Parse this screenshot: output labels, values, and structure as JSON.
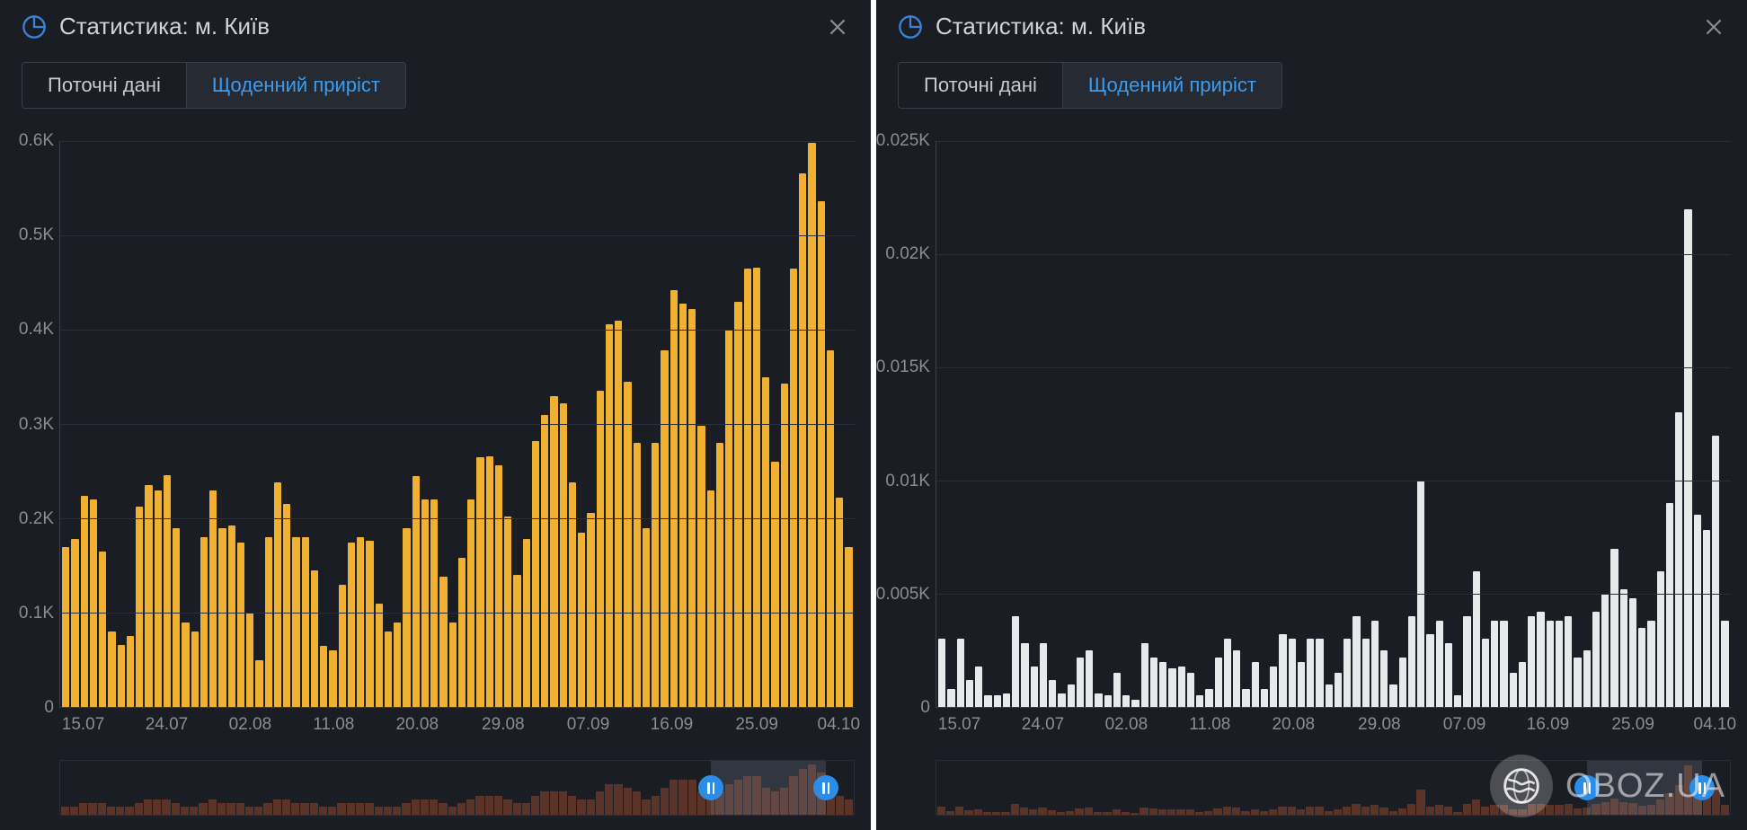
{
  "panels": [
    {
      "title": "Статистика: м. Київ",
      "tabs": [
        {
          "label": "Поточні дані",
          "active": false
        },
        {
          "label": "Щоденний приріст",
          "active": true
        }
      ],
      "chart": {
        "type": "bar",
        "bar_color": "#f0b132",
        "background_color": "#1a1d24",
        "grid_color": "#2a2e36",
        "border_color": "#3a3e46",
        "ylim": [
          0,
          0.6
        ],
        "y_ticks": [
          0,
          0.1,
          0.2,
          0.3,
          0.4,
          0.5,
          0.6
        ],
        "y_tick_labels": [
          "0",
          "0.1K",
          "0.2K",
          "0.3K",
          "0.4K",
          "0.5K",
          "0.6K"
        ],
        "x_tick_labels": [
          "15.07",
          "24.07",
          "02.08",
          "11.08",
          "20.08",
          "29.08",
          "07.09",
          "16.09",
          "25.09",
          "04.10"
        ],
        "x_tick_positions_pct": [
          3,
          13.5,
          24,
          34.5,
          45,
          55.8,
          66.5,
          77,
          87.7,
          98
        ],
        "label_fontsize": 19,
        "label_color": "#8a8d94",
        "values": [
          0.17,
          0.178,
          0.224,
          0.22,
          0.165,
          0.08,
          0.066,
          0.075,
          0.212,
          0.235,
          0.23,
          0.246,
          0.19,
          0.09,
          0.08,
          0.18,
          0.23,
          0.19,
          0.192,
          0.174,
          0.1,
          0.05,
          0.18,
          0.238,
          0.215,
          0.18,
          0.18,
          0.145,
          0.065,
          0.06,
          0.13,
          0.174,
          0.18,
          0.176,
          0.11,
          0.08,
          0.09,
          0.19,
          0.245,
          0.22,
          0.22,
          0.138,
          0.09,
          0.158,
          0.22,
          0.265,
          0.266,
          0.256,
          0.202,
          0.14,
          0.178,
          0.282,
          0.31,
          0.33,
          0.322,
          0.238,
          0.185,
          0.206,
          0.335,
          0.406,
          0.41,
          0.345,
          0.28,
          0.19,
          0.28,
          0.378,
          0.442,
          0.428,
          0.422,
          0.298,
          0.23,
          0.28,
          0.4,
          0.43,
          0.465,
          0.466,
          0.35,
          0.26,
          0.343,
          0.465,
          0.566,
          0.598,
          0.536,
          0.378,
          0.222,
          0.17
        ]
      },
      "timeline": {
        "bar_color": "#5a3428",
        "handle_color": "#2b8de8",
        "window_pct": [
          82,
          96.5
        ],
        "values": [
          0.02,
          0.02,
          0.03,
          0.03,
          0.03,
          0.02,
          0.02,
          0.02,
          0.03,
          0.04,
          0.04,
          0.04,
          0.03,
          0.02,
          0.02,
          0.03,
          0.04,
          0.03,
          0.03,
          0.03,
          0.02,
          0.02,
          0.03,
          0.04,
          0.04,
          0.03,
          0.03,
          0.03,
          0.02,
          0.02,
          0.03,
          0.03,
          0.03,
          0.03,
          0.02,
          0.02,
          0.02,
          0.03,
          0.04,
          0.04,
          0.04,
          0.03,
          0.02,
          0.03,
          0.04,
          0.05,
          0.05,
          0.05,
          0.04,
          0.03,
          0.03,
          0.05,
          0.06,
          0.06,
          0.06,
          0.05,
          0.04,
          0.04,
          0.06,
          0.08,
          0.08,
          0.07,
          0.06,
          0.04,
          0.05,
          0.07,
          0.09,
          0.09,
          0.09,
          0.06,
          0.05,
          0.06,
          0.08,
          0.09,
          0.1,
          0.1,
          0.07,
          0.06,
          0.07,
          0.1,
          0.12,
          0.13,
          0.11,
          0.08,
          0.05,
          0.04
        ],
        "tl_max": 0.14
      }
    },
    {
      "title": "Статистика: м. Київ",
      "tabs": [
        {
          "label": "Поточні дані",
          "active": false
        },
        {
          "label": "Щоденний приріст",
          "active": true
        }
      ],
      "chart": {
        "type": "bar",
        "bar_color": "#e8e9ea",
        "background_color": "#1a1d24",
        "grid_color": "#2a2e36",
        "border_color": "#3a3e46",
        "ylim": [
          0,
          0.025
        ],
        "y_ticks": [
          0,
          0.005,
          0.01,
          0.015,
          0.02,
          0.025
        ],
        "y_tick_labels": [
          "0",
          "0.005K",
          "0.01K",
          "0.015K",
          "0.02K",
          "0.025K"
        ],
        "x_tick_labels": [
          "15.07",
          "24.07",
          "02.08",
          "11.08",
          "20.08",
          "29.08",
          "07.09",
          "16.09",
          "25.09",
          "04.10"
        ],
        "x_tick_positions_pct": [
          3,
          13.5,
          24,
          34.5,
          45,
          55.8,
          66.5,
          77,
          87.7,
          98
        ],
        "label_fontsize": 19,
        "label_color": "#8a8d94",
        "values": [
          0.003,
          0.0008,
          0.003,
          0.0012,
          0.0018,
          0.0005,
          0.0005,
          0.0006,
          0.004,
          0.0028,
          0.0018,
          0.0028,
          0.0012,
          0.0006,
          0.001,
          0.0022,
          0.0025,
          0.0006,
          0.0005,
          0.0015,
          0.0005,
          0.0003,
          0.0028,
          0.0022,
          0.002,
          0.0017,
          0.0018,
          0.0015,
          0.0005,
          0.0008,
          0.0022,
          0.003,
          0.0025,
          0.0008,
          0.002,
          0.0008,
          0.0018,
          0.0032,
          0.003,
          0.002,
          0.003,
          0.003,
          0.001,
          0.0015,
          0.003,
          0.004,
          0.003,
          0.0038,
          0.0025,
          0.001,
          0.0022,
          0.004,
          0.01,
          0.0032,
          0.0038,
          0.0028,
          0.0005,
          0.004,
          0.006,
          0.003,
          0.0038,
          0.0038,
          0.0015,
          0.002,
          0.004,
          0.0042,
          0.0038,
          0.0038,
          0.004,
          0.0022,
          0.0025,
          0.0042,
          0.005,
          0.007,
          0.0052,
          0.0048,
          0.0035,
          0.0038,
          0.006,
          0.009,
          0.013,
          0.022,
          0.0085,
          0.0078,
          0.012,
          0.0038
        ]
      },
      "timeline": {
        "bar_color": "#5a3428",
        "handle_color": "#2b8de8",
        "window_pct": [
          82,
          96.5
        ],
        "values": [
          0.01,
          0.004,
          0.01,
          0.005,
          0.006,
          0.003,
          0.003,
          0.003,
          0.013,
          0.009,
          0.007,
          0.009,
          0.005,
          0.003,
          0.004,
          0.008,
          0.009,
          0.003,
          0.003,
          0.006,
          0.003,
          0.002,
          0.009,
          0.008,
          0.007,
          0.006,
          0.007,
          0.006,
          0.003,
          0.004,
          0.008,
          0.01,
          0.009,
          0.004,
          0.007,
          0.004,
          0.007,
          0.01,
          0.01,
          0.007,
          0.01,
          0.01,
          0.004,
          0.006,
          0.01,
          0.013,
          0.01,
          0.012,
          0.009,
          0.004,
          0.008,
          0.013,
          0.03,
          0.01,
          0.012,
          0.01,
          0.003,
          0.013,
          0.018,
          0.01,
          0.012,
          0.012,
          0.006,
          0.007,
          0.013,
          0.013,
          0.012,
          0.012,
          0.013,
          0.008,
          0.009,
          0.013,
          0.015,
          0.02,
          0.015,
          0.014,
          0.011,
          0.012,
          0.018,
          0.026,
          0.036,
          0.06,
          0.024,
          0.022,
          0.034,
          0.012
        ],
        "tl_max": 0.065
      }
    }
  ],
  "watermark": "OBOZ.UA",
  "icon_color": "#3b82d6",
  "close_color": "#8a8d94"
}
